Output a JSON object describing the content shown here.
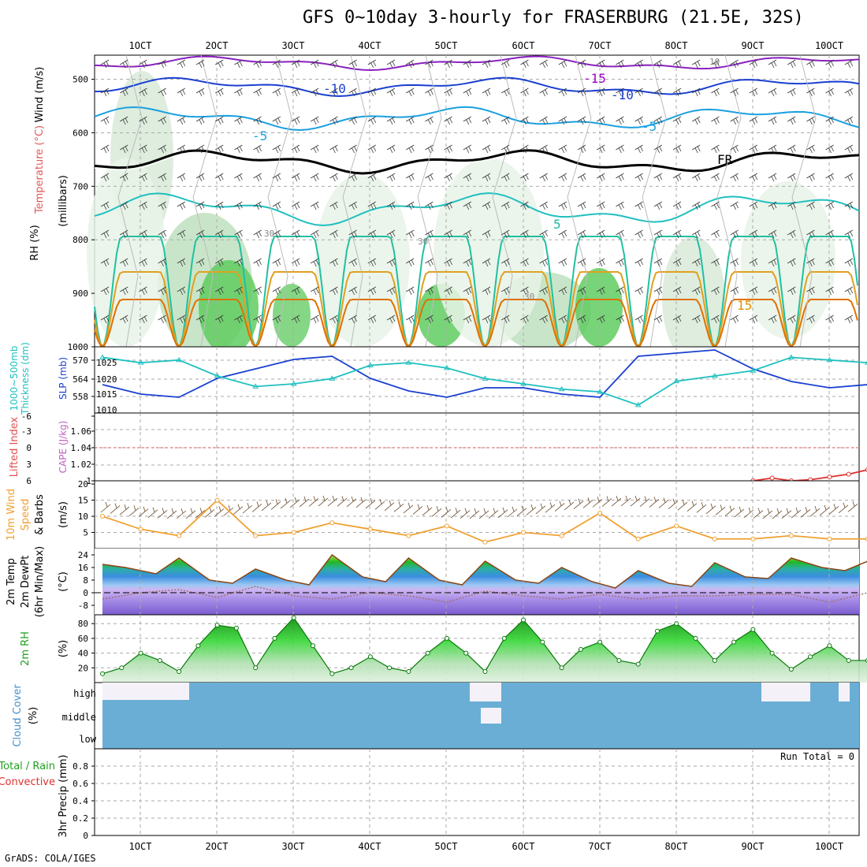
{
  "title": "GFS 0~10day 3-hourly for FRASERBURG (21.5E, 32S)",
  "credit": "GrADS: COLA/IGES",
  "run_total": "Run Total = 0",
  "x_ticks": [
    "1OCT",
    "2OCT",
    "3OCT",
    "4OCT",
    "5OCT",
    "6OCT",
    "7OCT",
    "8OCT",
    "9OCT",
    "10OCT"
  ],
  "panels": {
    "upper": {
      "ylabels": [
        {
          "text": "Wind (m/s)",
          "color": "#000000"
        },
        {
          "text": "Temperature (°C)",
          "color": "#e0a000"
        },
        {
          "text": "RH (%)",
          "color": "#000000"
        }
      ],
      "sub_label": "(millibars)",
      "yticks": [
        "500",
        "600",
        "700",
        "800",
        "900",
        "1000"
      ],
      "contour_labels": [
        {
          "text": "-15",
          "color": "#9b00c8"
        },
        {
          "text": "-10",
          "color": "#1a3fd0"
        },
        {
          "text": "-10",
          "color": "#1a3fd0"
        },
        {
          "text": "-5",
          "color": "#1aa0e0"
        },
        {
          "text": "-5",
          "color": "#1aa0e0"
        },
        {
          "text": "FR",
          "color": "#000000"
        },
        {
          "text": "5",
          "color": "#20b8a0"
        },
        {
          "text": "15",
          "color": "#e09000"
        },
        {
          "text": "30",
          "color": "#888888"
        },
        {
          "text": "30",
          "color": "#888888"
        },
        {
          "text": "30",
          "color": "#888888"
        },
        {
          "text": "10",
          "color": "#888888"
        }
      ]
    },
    "slp": {
      "label1": "1000~500mb",
      "label2": "Thickness (dm)",
      "label3": "SLP (mb)",
      "left_ticks": [
        "570",
        "564",
        "558"
      ],
      "right_ticks": [
        "1025",
        "1020",
        "1015",
        "1010"
      ]
    },
    "cape": {
      "label1": "Lifted Index",
      "label2": "CAPE (J/kg)",
      "left_ticks": [
        "-6",
        "-3",
        "0",
        "3",
        "6"
      ],
      "right_ticks": [
        "1.06",
        "1.04",
        "1.02",
        "1"
      ]
    },
    "wind10": {
      "label1": "10m Wind",
      "label2": "Speed",
      "label3": "& Barbs",
      "label4": "(m/s)",
      "yticks": [
        "20",
        "15",
        "10",
        "5"
      ]
    },
    "temp2m": {
      "label1": "2m Temp",
      "label2": "2m DewPt",
      "label3": "(6hr Min/Max)",
      "label4": "(°C)",
      "yticks": [
        "24",
        "16",
        "8",
        "0",
        "-8"
      ]
    },
    "rh2m": {
      "label1": "2m RH",
      "label2": "(%)",
      "yticks": [
        "80",
        "60",
        "40",
        "20"
      ]
    },
    "cloud": {
      "label1": "Cloud Cover",
      "label2": "(%)",
      "levels": [
        "high",
        "middle",
        "low"
      ]
    },
    "precip": {
      "label1": "Total / Rain",
      "label2": "Convective",
      "label3": "3hr Precip (mm)",
      "yticks": [
        "0.8",
        "0.6",
        "0.4",
        "0.2",
        "0"
      ]
    }
  },
  "chart_data": [
    {
      "type": "line",
      "name": "SLP and Thickness",
      "series": [
        {
          "name": "SLP (mb)",
          "color": "#1a3fd0",
          "x_days": [
            0,
            0.5,
            1,
            1.5,
            2,
            2.5,
            3,
            3.5,
            4,
            4.5,
            5,
            5.5,
            6,
            6.5,
            7,
            7.5,
            8,
            8.5,
            9,
            9.5,
            10
          ],
          "values": [
            1017,
            1014,
            1013,
            1019,
            1022,
            1025,
            1026,
            1019,
            1015,
            1013,
            1016,
            1016,
            1014,
            1013,
            1026,
            1027,
            1028,
            1022,
            1018,
            1016,
            1017
          ]
        },
        {
          "name": "Thickness (dm)",
          "color": "#20c0c0",
          "x_days": [
            0,
            0.5,
            1,
            1.5,
            2,
            2.5,
            3,
            3.5,
            4,
            4.5,
            5,
            5.5,
            6,
            6.5,
            7,
            7.5,
            8,
            8.5,
            9,
            9.5,
            10
          ],
          "values": [
            571,
            569,
            570,
            564,
            560,
            561,
            563,
            568,
            569,
            567,
            563,
            561,
            559,
            558,
            553,
            562,
            564,
            566,
            571,
            570,
            569
          ]
        }
      ]
    },
    {
      "type": "line",
      "name": "Lifted Index",
      "ylim": [
        6,
        -6
      ],
      "series": [
        {
          "name": "Lifted Index",
          "color": "#e03030",
          "x_days": [
            8.5,
            8.75,
            9.0,
            9.25,
            9.5,
            9.75,
            10.0
          ],
          "values": [
            6.0,
            5.5,
            6.0,
            5.8,
            5.3,
            4.8,
            4.0
          ]
        }
      ]
    },
    {
      "type": "line",
      "name": "10m Wind Speed",
      "ylim": [
        0,
        20
      ],
      "series": [
        {
          "name": "Speed",
          "color": "#f0a030",
          "x_days": [
            0,
            0.5,
            1,
            1.5,
            2,
            2.5,
            3,
            3.5,
            4,
            4.5,
            5,
            5.5,
            6,
            6.5,
            7,
            7.5,
            8,
            8.5,
            9,
            9.5,
            10
          ],
          "values": [
            10,
            6,
            4,
            15,
            4,
            5,
            8,
            6,
            4,
            7,
            2,
            5,
            4,
            11,
            3,
            7,
            3,
            3,
            4,
            3,
            3
          ]
        }
      ]
    },
    {
      "type": "area",
      "name": "2m Temperature",
      "ylim": [
        -14,
        28
      ],
      "series": [
        {
          "name": "2m Temp",
          "color": "#8b4513",
          "x_days": [
            0,
            0.3,
            0.7,
            1,
            1.4,
            1.7,
            2,
            2.4,
            2.7,
            3,
            3.4,
            3.7,
            4,
            4.4,
            4.7,
            5,
            5.4,
            5.7,
            6,
            6.4,
            6.7,
            7,
            7.4,
            7.7,
            8,
            8.4,
            8.7,
            9,
            9.4,
            9.7,
            10
          ],
          "values": [
            18,
            16,
            12,
            22,
            8,
            6,
            15,
            8,
            5,
            24,
            10,
            7,
            22,
            8,
            5,
            20,
            8,
            6,
            16,
            7,
            3,
            14,
            6,
            4,
            19,
            10,
            9,
            22,
            16,
            14,
            20
          ]
        },
        {
          "name": "2m DewPt",
          "color": "#a07070",
          "x_days": [
            0,
            0.5,
            1,
            1.5,
            2,
            2.5,
            3,
            3.5,
            4,
            4.5,
            5,
            5.5,
            6,
            6.5,
            7,
            7.5,
            8,
            8.5,
            9,
            9.5,
            10
          ],
          "values": [
            -4,
            0,
            2,
            -3,
            4,
            -2,
            -4,
            0,
            -2,
            -6,
            1,
            -2,
            -4,
            -1,
            -4,
            -2,
            -2,
            -1,
            -1,
            -6,
            0
          ]
        }
      ]
    },
    {
      "type": "area",
      "name": "2m RH",
      "ylim": [
        0,
        90
      ],
      "series": [
        {
          "name": "2m RH",
          "color": "#20c020",
          "x_days": [
            0,
            0.25,
            0.5,
            0.75,
            1,
            1.25,
            1.5,
            1.75,
            2,
            2.25,
            2.5,
            2.75,
            3,
            3.25,
            3.5,
            3.75,
            4,
            4.25,
            4.5,
            4.75,
            5,
            5.25,
            5.5,
            5.75,
            6,
            6.25,
            6.5,
            6.75,
            7,
            7.25,
            7.5,
            7.75,
            8,
            8.25,
            8.5,
            8.75,
            9,
            9.25,
            9.5,
            9.75,
            10
          ],
          "values": [
            12,
            20,
            40,
            30,
            15,
            50,
            78,
            74,
            20,
            60,
            88,
            50,
            12,
            20,
            35,
            20,
            15,
            40,
            60,
            40,
            15,
            60,
            85,
            55,
            20,
            45,
            55,
            30,
            25,
            70,
            80,
            60,
            30,
            55,
            72,
            40,
            18,
            35,
            50,
            30,
            30
          ]
        }
      ]
    },
    {
      "type": "bar",
      "name": "3hr Precip",
      "ylim": [
        0,
        1
      ],
      "series": [
        {
          "name": "Total / Rain",
          "color": "#20c020",
          "values": [
            0
          ]
        }
      ]
    }
  ]
}
